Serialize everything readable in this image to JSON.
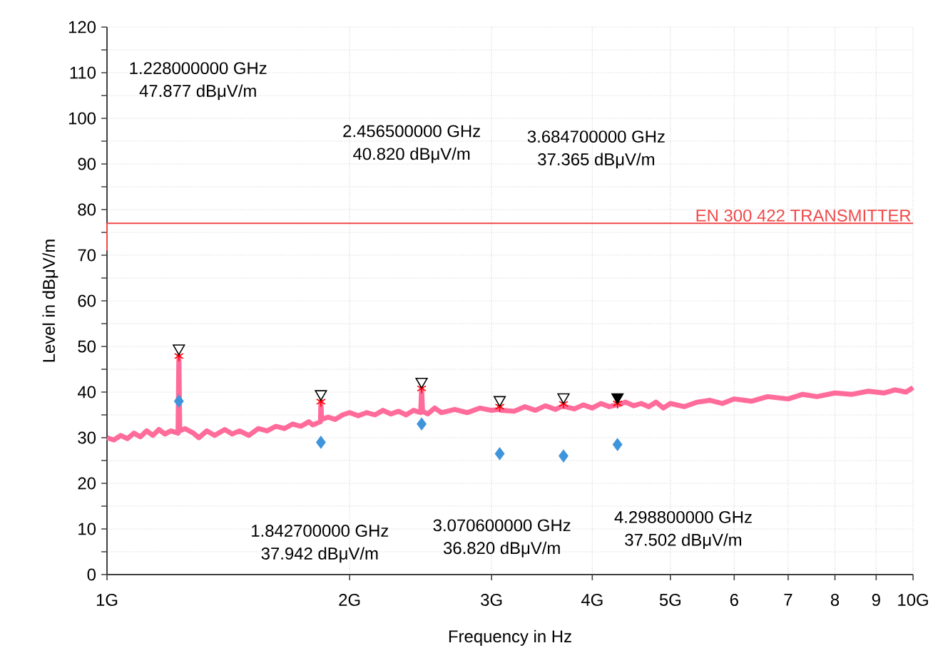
{
  "chart_data": {
    "type": "line",
    "xlabel": "Frequency in Hz",
    "ylabel": "Level in dBμV/m",
    "log": "x",
    "grid": true,
    "xlim": [
      1,
      10
    ],
    "xticks": [
      {
        "value": 1,
        "label": "1G"
      },
      {
        "value": 2,
        "label": "2G"
      },
      {
        "value": 3,
        "label": "3G"
      },
      {
        "value": 4,
        "label": "4G"
      },
      {
        "value": 5,
        "label": "5G"
      },
      6,
      7,
      8,
      9,
      {
        "value": 10,
        "label": "10G"
      }
    ],
    "ylim": [
      0,
      120
    ],
    "yticks": [
      0,
      {
        "value": 5,
        "label": null
      },
      10,
      {
        "value": 15,
        "label": null
      },
      20,
      {
        "value": 25,
        "label": null
      },
      30,
      {
        "value": 35,
        "label": null
      },
      40,
      {
        "value": 45,
        "label": null
      },
      50,
      {
        "value": 55,
        "label": null
      },
      60,
      {
        "value": 65,
        "label": null
      },
      70,
      {
        "value": 75,
        "label": null
      },
      80,
      {
        "value": 85,
        "label": null
      },
      90,
      {
        "value": 95,
        "label": null
      },
      100,
      {
        "value": 105,
        "label": null
      },
      110,
      {
        "value": 115,
        "label": null
      },
      120
    ],
    "series": [
      {
        "color": "#ff6b9a",
        "x": [
          1.0,
          1.02,
          1.04,
          1.06,
          1.08,
          1.1,
          1.12,
          1.14,
          1.16,
          1.18,
          1.2,
          1.225,
          1.228,
          1.231,
          1.25,
          1.28,
          1.3,
          1.33,
          1.36,
          1.4,
          1.43,
          1.46,
          1.5,
          1.54,
          1.58,
          1.62,
          1.66,
          1.7,
          1.74,
          1.78,
          1.8,
          1.84,
          1.8427,
          1.846,
          1.88,
          1.92,
          1.96,
          2.0,
          2.05,
          2.1,
          2.15,
          2.2,
          2.25,
          2.3,
          2.35,
          2.4,
          2.45,
          2.4565,
          2.463,
          2.5,
          2.55,
          2.6,
          2.7,
          2.8,
          2.9,
          3.0,
          3.07,
          3.0706,
          3.08,
          3.2,
          3.3,
          3.4,
          3.5,
          3.6,
          3.68,
          3.6847,
          3.7,
          3.8,
          3.9,
          4.0,
          4.1,
          4.2,
          4.29,
          4.2988,
          4.31,
          4.4,
          4.5,
          4.6,
          4.7,
          4.8,
          4.9,
          5.0,
          5.2,
          5.4,
          5.6,
          5.8,
          6.0,
          6.3,
          6.6,
          7.0,
          7.3,
          7.6,
          8.0,
          8.4,
          8.8,
          9.2,
          9.5,
          9.8,
          10.0
        ],
        "values": [
          30,
          29.5,
          30.5,
          29.8,
          31,
          30.2,
          31.5,
          30.5,
          31.8,
          30.8,
          31.5,
          31,
          47.9,
          31.5,
          32,
          31,
          30,
          31.5,
          30.5,
          31.8,
          30.8,
          31.5,
          30.5,
          32,
          31.5,
          32.5,
          32,
          33,
          32.5,
          33.5,
          32.8,
          33.5,
          37.9,
          34,
          34.5,
          34,
          35,
          35.5,
          34.8,
          35.5,
          35,
          36,
          35.2,
          35.8,
          35,
          36,
          35.5,
          40.8,
          35.8,
          35.2,
          36.5,
          35.5,
          36.2,
          35.5,
          36.5,
          36,
          36.2,
          36.8,
          36,
          35.8,
          36.8,
          36,
          37,
          36.2,
          37,
          37.4,
          36.8,
          36.3,
          37.2,
          36.5,
          37.5,
          36.8,
          37.2,
          37.5,
          37.2,
          37.8,
          37,
          37.5,
          36.8,
          37.8,
          36.5,
          37.5,
          36.8,
          37.8,
          38.2,
          37.5,
          38.5,
          38,
          39,
          38.5,
          39.5,
          39,
          39.8,
          39.5,
          40.2,
          39.8,
          40.5,
          40,
          41
        ]
      },
      {
        "name": "EN 300 422 TRANSMITTER",
        "color": "#f04848",
        "x": [
          1,
          1,
          10
        ],
        "values": [
          71,
          77,
          77
        ]
      },
      {
        "type": "scatter",
        "marker": "diamond",
        "color": "#3f95dc",
        "x": [
          1.228,
          1.8427,
          2.4565,
          3.0706,
          3.6847,
          4.2988
        ],
        "values": [
          38,
          29,
          33,
          26.5,
          26,
          28.5
        ]
      },
      {
        "type": "scatter",
        "marker": "cross",
        "color": "#ff0000",
        "x": [
          1.228,
          1.8427,
          2.4565,
          3.0706,
          3.6847,
          4.2988
        ],
        "values": [
          47.9,
          37.9,
          40.8,
          36.8,
          37.4,
          37.5
        ]
      },
      {
        "type": "scatter",
        "marker": "triangle",
        "color": "#000000",
        "colors": [
          "#ffffff",
          "#ffffff",
          "#ffffff",
          "#ffffff",
          "#ffffff",
          "#000000"
        ],
        "x": [
          1.228,
          1.8427,
          2.4565,
          3.0706,
          3.6847,
          4.2988
        ],
        "values": [
          49.6,
          39.6,
          42.3,
          38.3,
          38.9,
          38.9
        ]
      }
    ],
    "annotations": [
      "1.228000000 GHz",
      "47.877 dBμV/m",
      "1.842700000 GHz",
      "37.942 dBμV/m",
      "2.456500000 GHz",
      "40.820 dBμV/m",
      "3.070600000 GHz",
      "36.820 dBμV/m",
      "3.684700000 GHz",
      "37.365 dBμV/m",
      "4.298800000 GHz",
      "37.502 dBμV/m"
    ]
  }
}
